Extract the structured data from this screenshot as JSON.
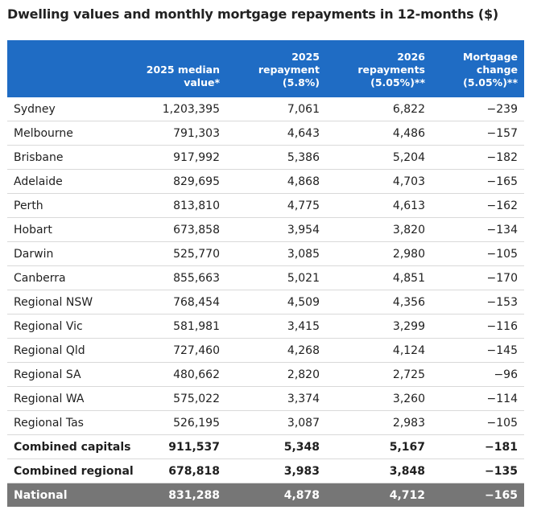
{
  "title": "Dwelling values and monthly mortgage repayments in 12-months ($)",
  "chart_data": {
    "type": "table",
    "title": "Dwelling values and monthly mortgage repayments in 12-months ($)",
    "columns": [
      "",
      "2025 median value*",
      "2025 repayment (5.8%)",
      "2026 repayments (5.05%)**",
      "Mortgage change (5.05%)**"
    ],
    "header_lines": [
      [],
      [
        "2025 median",
        "value*"
      ],
      [
        "2025",
        "repayment",
        "(5.8%)"
      ],
      [
        "2026",
        "repayments",
        "(5.05%)**"
      ],
      [
        "Mortgage",
        "change",
        "(5.05%)**"
      ]
    ],
    "rows": [
      {
        "style": "normal",
        "cells": [
          "Sydney",
          "1,203,395",
          "7,061",
          "6,822",
          "−239"
        ]
      },
      {
        "style": "normal",
        "cells": [
          "Melbourne",
          "791,303",
          "4,643",
          "4,486",
          "−157"
        ]
      },
      {
        "style": "normal",
        "cells": [
          "Brisbane",
          "917,992",
          "5,386",
          "5,204",
          "−182"
        ]
      },
      {
        "style": "normal",
        "cells": [
          "Adelaide",
          "829,695",
          "4,868",
          "4,703",
          "−165"
        ]
      },
      {
        "style": "normal",
        "cells": [
          "Perth",
          "813,810",
          "4,775",
          "4,613",
          "−162"
        ]
      },
      {
        "style": "normal",
        "cells": [
          "Hobart",
          "673,858",
          "3,954",
          "3,820",
          "−134"
        ]
      },
      {
        "style": "normal",
        "cells": [
          "Darwin",
          "525,770",
          "3,085",
          "2,980",
          "−105"
        ]
      },
      {
        "style": "normal",
        "cells": [
          "Canberra",
          "855,663",
          "5,021",
          "4,851",
          "−170"
        ]
      },
      {
        "style": "normal",
        "cells": [
          "Regional NSW",
          "768,454",
          "4,509",
          "4,356",
          "−153"
        ]
      },
      {
        "style": "normal",
        "cells": [
          "Regional Vic",
          "581,981",
          "3,415",
          "3,299",
          "−116"
        ]
      },
      {
        "style": "normal",
        "cells": [
          "Regional Qld",
          "727,460",
          "4,268",
          "4,124",
          "−145"
        ]
      },
      {
        "style": "normal",
        "cells": [
          "Regional SA",
          "480,662",
          "2,820",
          "2,725",
          "−96"
        ]
      },
      {
        "style": "normal",
        "cells": [
          "Regional WA",
          "575,022",
          "3,374",
          "3,260",
          "−114"
        ]
      },
      {
        "style": "normal",
        "cells": [
          "Regional Tas",
          "526,195",
          "3,087",
          "2,983",
          "−105"
        ]
      },
      {
        "style": "bold",
        "cells": [
          "Combined capitals",
          "911,537",
          "5,348",
          "5,167",
          "−181"
        ]
      },
      {
        "style": "bold",
        "cells": [
          "Combined regional",
          "678,818",
          "3,983",
          "3,848",
          "−135"
        ]
      },
      {
        "style": "national",
        "cells": [
          "National",
          "831,288",
          "4,878",
          "4,712",
          "−165"
        ]
      }
    ]
  },
  "colors": {
    "header_bg": "#1f6cc4",
    "national_bg": "#767676",
    "row_divider": "#d9d9d9"
  }
}
